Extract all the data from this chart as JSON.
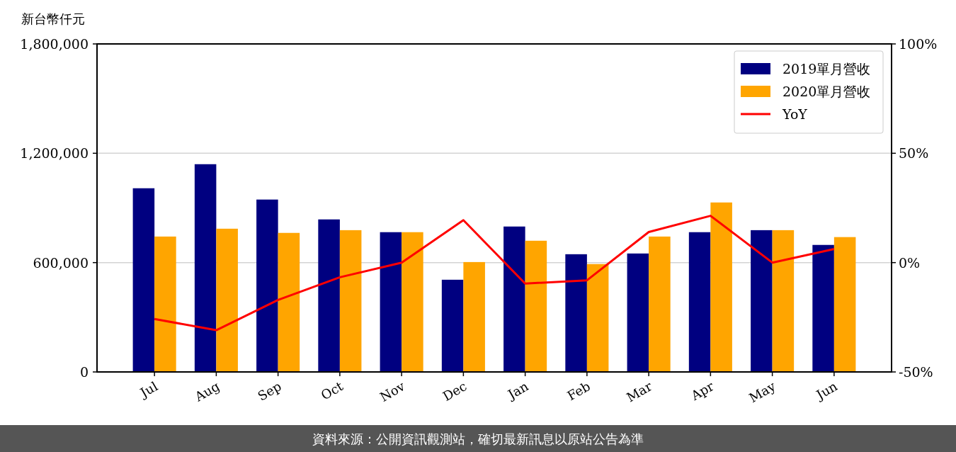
{
  "chart_data": {
    "type": "bar",
    "ylabel": "新台幣仟元",
    "categories": [
      "Jul",
      "Aug",
      "Sep",
      "Oct",
      "Nov",
      "Dec",
      "Jan",
      "Feb",
      "Mar",
      "Apr",
      "May",
      "Jun"
    ],
    "series": [
      {
        "name": "2019單月營收",
        "color": "#000080",
        "values": [
          1008000,
          1140000,
          946000,
          837000,
          767000,
          506000,
          798000,
          646000,
          650000,
          767000,
          778000,
          697000
        ]
      },
      {
        "name": "2020單月營收",
        "color": "#ffa500",
        "values": [
          743000,
          786000,
          763000,
          778000,
          767000,
          603000,
          720000,
          592000,
          743000,
          930000,
          778000,
          740000
        ]
      },
      {
        "name": "YoY",
        "type": "line",
        "axis": "y2",
        "color": "#ff0000",
        "values": [
          -25.8,
          -30.9,
          -17.1,
          -6.7,
          0,
          19.4,
          -9.6,
          -8.1,
          14.0,
          21.4,
          0,
          6.2
        ]
      }
    ],
    "ylim": [
      0,
      1800000
    ],
    "yticks": [
      {
        "value": 0,
        "label": "0"
      },
      {
        "value": 600000,
        "label": "600,000"
      },
      {
        "value": 1200000,
        "label": "1,200,000"
      },
      {
        "value": 1800000,
        "label": "1,800,000"
      }
    ],
    "y2lim": [
      -50,
      100
    ],
    "y2ticks": [
      {
        "value": -50,
        "label": "-50%"
      },
      {
        "value": 0,
        "label": "0%"
      },
      {
        "value": 50,
        "label": "50%"
      },
      {
        "value": 100,
        "label": "100%"
      }
    ],
    "grid": "y",
    "legend": "top right",
    "annotations": [
      "資料來源：公開資訊觀測站，確切最新訊息以原站公告為準"
    ]
  }
}
